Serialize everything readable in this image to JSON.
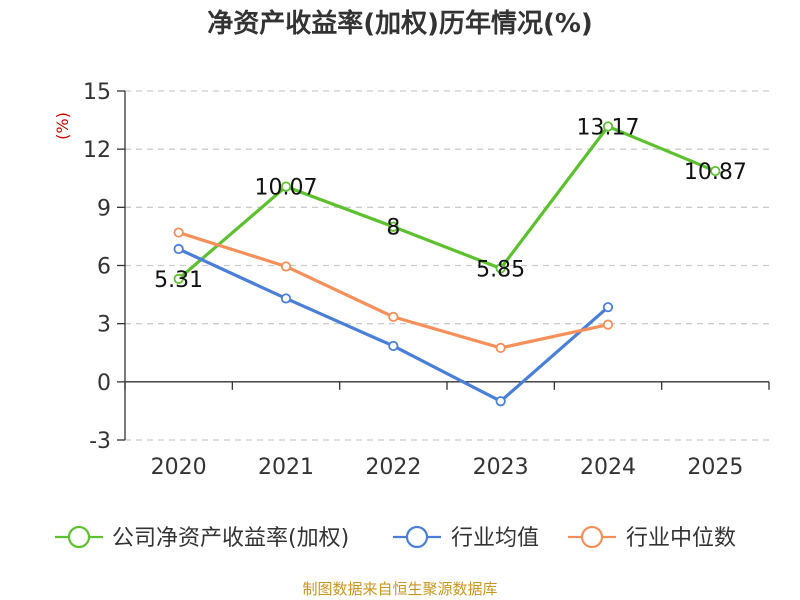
{
  "chart_data": {
    "type": "line",
    "title": "净资产收益率(加权)历年情况(%)",
    "ylabel": "(%)",
    "categories": [
      "2020",
      "2021",
      "2022",
      "2023",
      "2024",
      "2025"
    ],
    "ylim": [
      -3,
      15
    ],
    "yticks": [
      15,
      12,
      9,
      6,
      3,
      0,
      -3
    ],
    "grid": true,
    "legend_position": "bottom",
    "series": [
      {
        "name": "公司净资产收益率(加权)",
        "color": "#5dc12f",
        "values": [
          5.31,
          10.07,
          8,
          5.85,
          13.17,
          10.87
        ],
        "labels": [
          "5.31",
          "10.07",
          "8",
          "5.85",
          "13.17",
          "10.87"
        ]
      },
      {
        "name": "行业均值",
        "color": "#4a7fd8",
        "values": [
          6.85,
          4.3,
          1.85,
          -1.0,
          3.85,
          null
        ]
      },
      {
        "name": "行业中位数",
        "color": "#f5905a",
        "values": [
          7.7,
          5.95,
          3.35,
          1.75,
          2.95,
          null
        ]
      }
    ]
  },
  "source": "制图数据来自恒生聚源数据库"
}
